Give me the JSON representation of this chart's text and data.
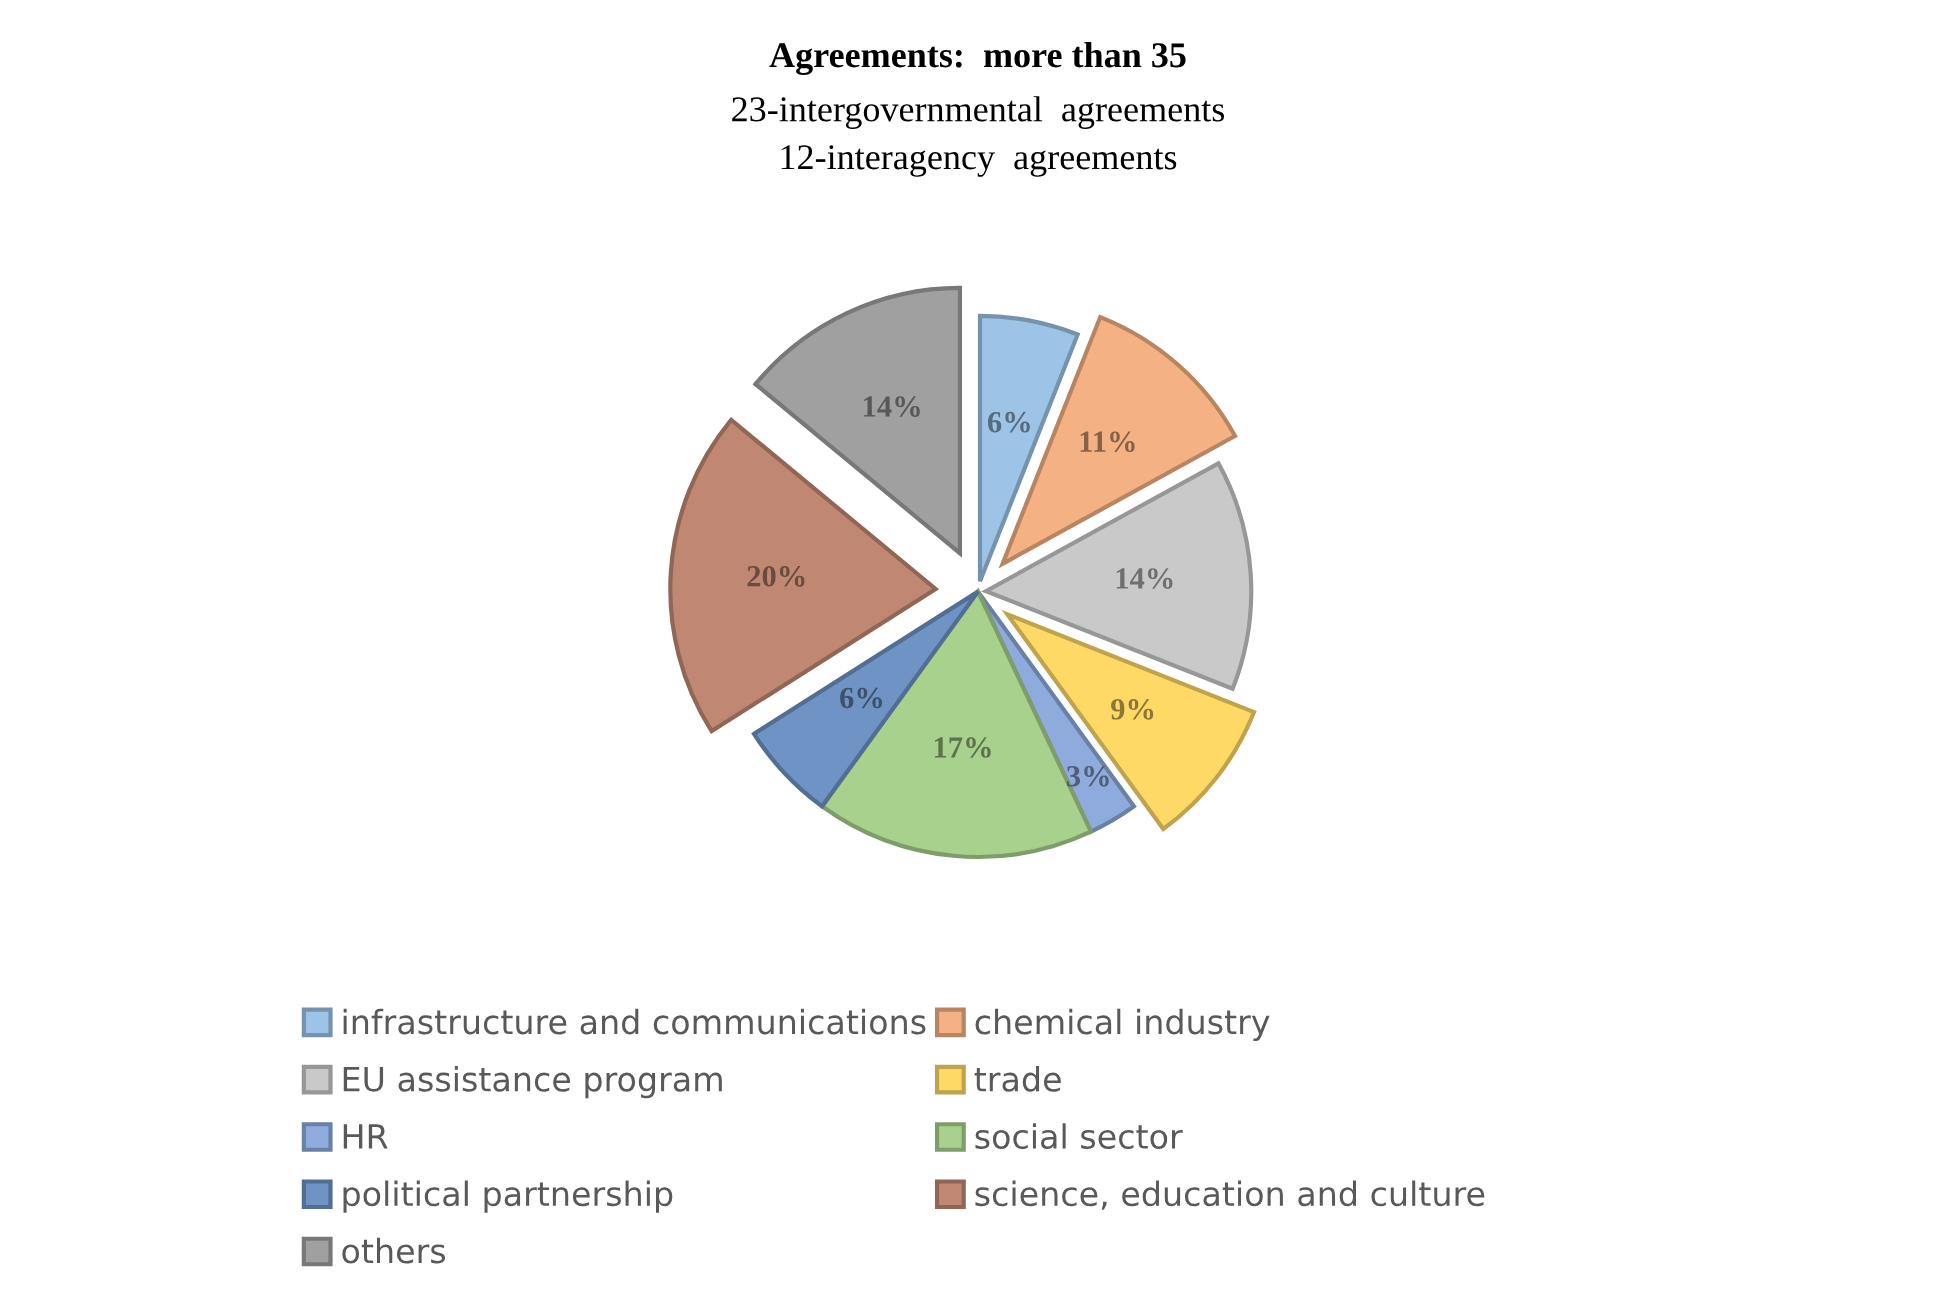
{
  "chart_data": {
    "type": "pie",
    "title": "Agreements:  more than 35",
    "subtitle": "23-intergovernmental  agreements\n12-interagency  agreements",
    "categories": [
      "infrastructure and communications",
      "chemical industry",
      "EU assistance program",
      "trade",
      "HR",
      "social sector",
      "political partnership",
      "science, education and culture",
      "others"
    ],
    "values": [
      6,
      11,
      14,
      9,
      3,
      17,
      6,
      20,
      14
    ],
    "value_labels": [
      "6%",
      "11%",
      "14%",
      "9%",
      "3%",
      "17%",
      "6%",
      "20%",
      "14%"
    ],
    "colors": [
      "#9dc3e6",
      "#f4b183",
      "#c9c9c9",
      "#ffd966",
      "#8faadc",
      "#a9d18e",
      "#6f93c4",
      "#c08872",
      "#a0a0a0"
    ],
    "legend": "bottom"
  }
}
